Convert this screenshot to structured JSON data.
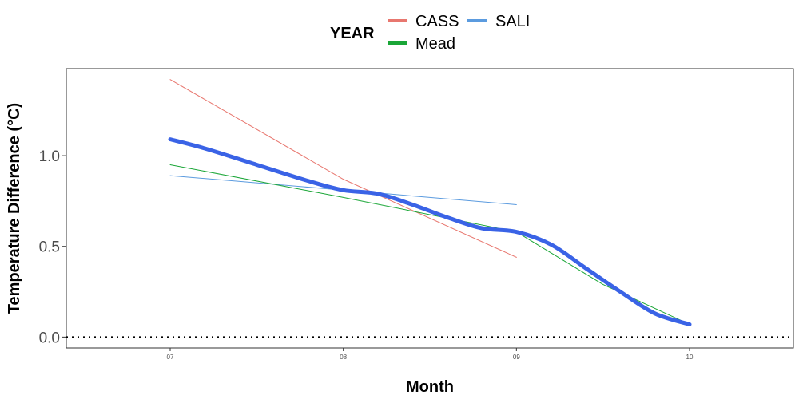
{
  "chart_data": {
    "type": "line",
    "xlabel": "Month",
    "ylabel": "Temperature Difference (°C)",
    "x_ticks": [
      "07",
      "08",
      "09",
      "10"
    ],
    "y_ticks": [
      "0.0",
      "0.5",
      "1.0"
    ],
    "xlim": [
      6.4,
      10.6
    ],
    "ylim": [
      -0.06,
      1.48
    ],
    "grid": false,
    "legend": {
      "title": "YEAR",
      "position": "top",
      "entries": [
        {
          "name": "CASS",
          "color": "#e8776f"
        },
        {
          "name": "SALI",
          "color": "#5b9bdf"
        },
        {
          "name": "Mead",
          "color": "#1aa637"
        }
      ]
    },
    "series": [
      {
        "name": "CASS",
        "color": "#e8776f",
        "x": [
          7,
          8,
          9
        ],
        "y": [
          1.42,
          0.87,
          0.44
        ]
      },
      {
        "name": "SALI",
        "color": "#5b9bdf",
        "x": [
          7,
          9
        ],
        "y": [
          0.89,
          0.73
        ]
      },
      {
        "name": "Mead",
        "color": "#1aa637",
        "x": [
          7,
          8,
          9,
          9.5,
          10
        ],
        "y": [
          0.95,
          0.77,
          0.58,
          0.29,
          0.07
        ]
      },
      {
        "name": "",
        "color": "#3a63e6",
        "role": "overall smooth",
        "x": [
          7,
          7.2,
          7.5,
          7.8,
          8,
          8.2,
          8.4,
          8.6,
          8.8,
          9,
          9.2,
          9.4,
          9.6,
          9.8,
          10
        ],
        "y": [
          1.09,
          1.04,
          0.95,
          0.86,
          0.81,
          0.79,
          0.73,
          0.66,
          0.6,
          0.58,
          0.51,
          0.38,
          0.25,
          0.13,
          0.07
        ]
      }
    ],
    "reference_line": {
      "y": 0.0,
      "style": "dotted",
      "color": "#000000"
    }
  }
}
